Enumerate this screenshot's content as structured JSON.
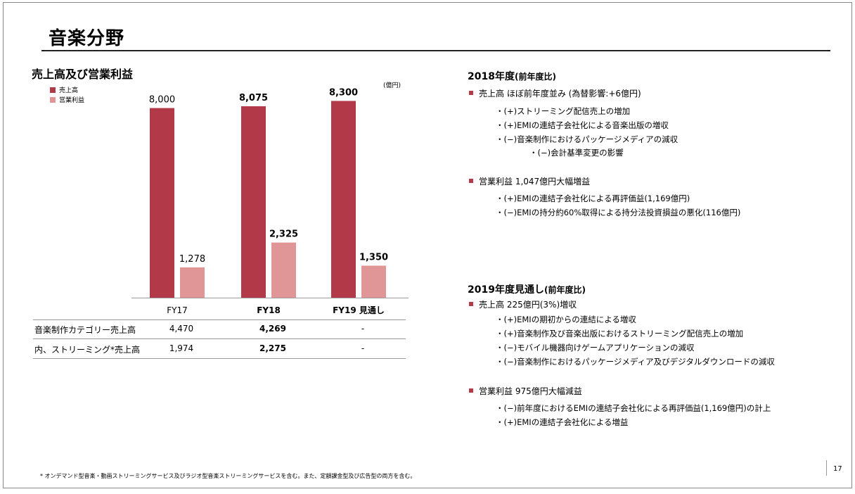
{
  "page_title": "音楽分野",
  "chart_title": "売上高及び営業利益",
  "unit": "(億円)",
  "colors": {
    "revenue": "#b23a48",
    "operating_income": "#e09596",
    "bullet": "#b53a47"
  },
  "chart_data": {
    "type": "bar",
    "categories": [
      "FY17",
      "FY18",
      "FY19 見通し"
    ],
    "series": [
      {
        "name": "売上高",
        "values": [
          8000,
          8075,
          8300
        ],
        "labels": [
          "8,000",
          "8,075",
          "8,300"
        ]
      },
      {
        "name": "営業利益",
        "values": [
          1278,
          2325,
          1350
        ],
        "labels": [
          "1,278",
          "2,325",
          "1,350"
        ]
      }
    ],
    "category_bold": [
      false,
      true,
      true
    ],
    "label_bold": [
      false,
      true,
      true
    ],
    "ylim": [
      0,
      9500
    ],
    "legend": "top-left"
  },
  "table": {
    "rows": [
      {
        "label": "音楽制作カテゴリー売上高",
        "values": [
          "4,470",
          "4,269",
          "-"
        ]
      },
      {
        "label": "内、ストリーミング*売上高",
        "values": [
          "1,974",
          "2,275",
          "-"
        ]
      }
    ]
  },
  "sec2018": {
    "title": "2018年度",
    "title_suffix": "(前年度比)",
    "bullet1": "売上高 ほぼ前年度並み (為替影響:+6億円)",
    "sub1": [
      "・(+)ストリーミング配信売上の増加",
      "・(+)EMIの連結子会社化による音楽出版の増収",
      "・(−)音楽制作におけるパッケージメディアの減収"
    ],
    "sub1_nested": "・(−)会計基準変更の影響",
    "bullet2": "営業利益 1,047億円大幅増益",
    "sub2": [
      "・(+)EMIの連結子会社化による再評価益(1,169億円)",
      "・(−)EMIの持分約60%取得による持分法投資損益の悪化(116億円)"
    ]
  },
  "sec2019": {
    "title": "2019年度見通し",
    "title_suffix": "(前年度比)",
    "bullet1": "売上高 225億円(3%)増収",
    "sub1": [
      "・(+)EMIの期初からの連結による増収",
      "・(+)音楽制作及び音楽出版におけるストリーミング配信売上の増加",
      "・(−)モバイル機器向けゲームアプリケーションの減収",
      "・(−)音楽制作におけるパッケージメディア及びデジタルダウンロードの減収"
    ],
    "bullet2": "営業利益 975億円大幅減益",
    "sub2": [
      "・(−)前年度におけるEMIの連結子会社化による再評価益(1,169億円)の計上",
      "・(+)EMIの連結子会社化による増益"
    ]
  },
  "footnote": "* オンデマンド型音楽・動画ストリーミングサービス及びラジオ型音楽ストリーミングサービスを含む。また、定額課金型及び広告型の両方を含む。",
  "page_number": "17"
}
